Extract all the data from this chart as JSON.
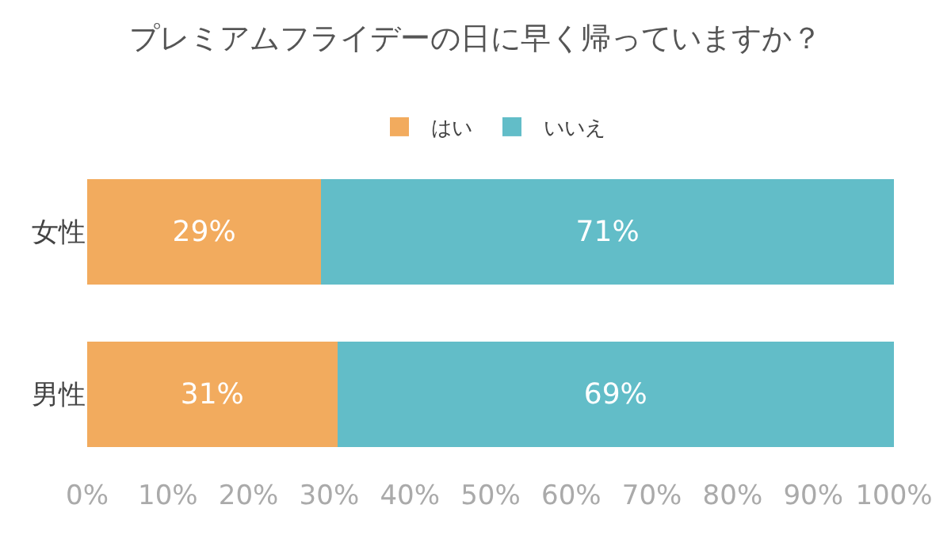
{
  "chart_data": {
    "type": "bar",
    "orientation": "horizontal",
    "stacked": true,
    "title": "プレミアムフライデーの日に早く帰っていますか？",
    "categories": [
      "女性",
      "男性"
    ],
    "series": [
      {
        "name": "はい",
        "color": "#f2ab5e",
        "values": [
          29,
          31
        ],
        "value_labels": [
          "29%",
          "31%"
        ]
      },
      {
        "name": "いいえ",
        "color": "#62bdc8",
        "values": [
          71,
          69
        ],
        "value_labels": [
          "71%",
          "69%"
        ]
      }
    ],
    "xlim": [
      0,
      100
    ],
    "xticks": [
      {
        "value": 0,
        "label": "0%"
      },
      {
        "value": 10,
        "label": "10%"
      },
      {
        "value": 20,
        "label": "20%"
      },
      {
        "value": 30,
        "label": "30%"
      },
      {
        "value": 40,
        "label": "40%"
      },
      {
        "value": 50,
        "label": "50%"
      },
      {
        "value": 60,
        "label": "60%"
      },
      {
        "value": 70,
        "label": "70%"
      },
      {
        "value": 80,
        "label": "80%"
      },
      {
        "value": 90,
        "label": "90%"
      },
      {
        "value": 100,
        "label": "100%"
      }
    ],
    "legend": "top"
  }
}
